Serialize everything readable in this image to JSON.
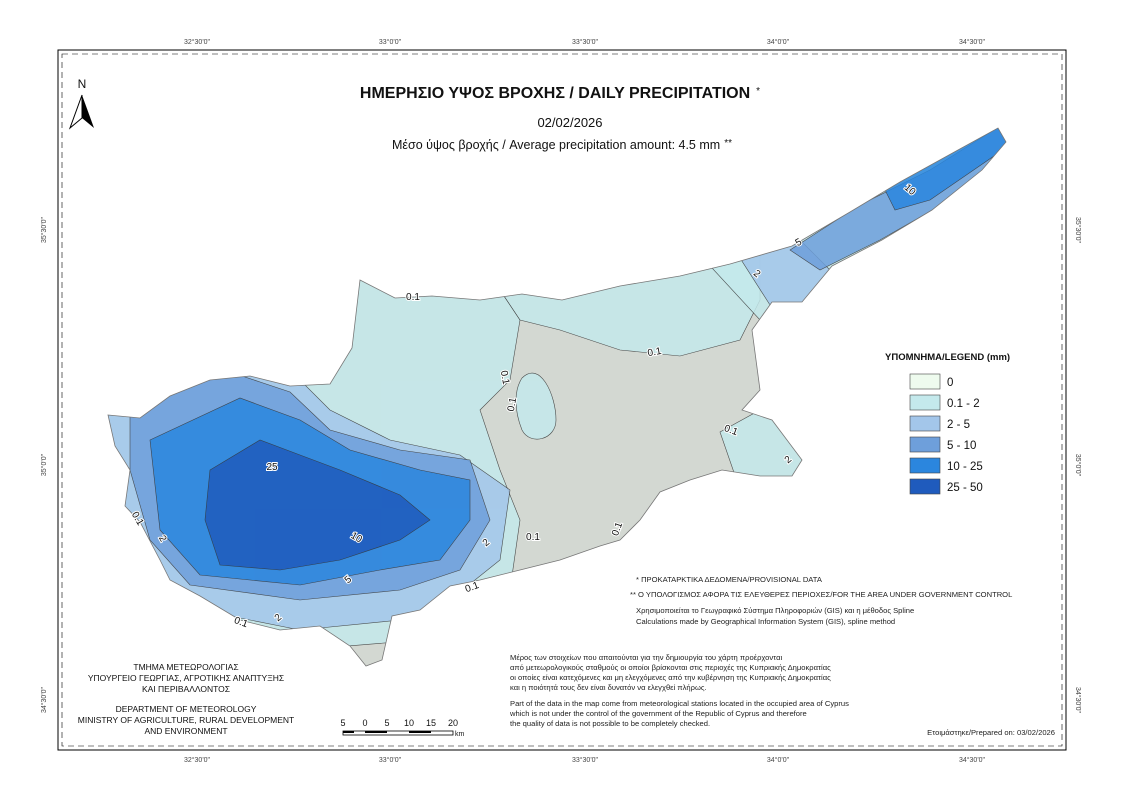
{
  "map": {
    "title": "ΗΜΕΡΗΣΙΟ ΥΨΟΣ ΒΡΟΧΗΣ / DAILY PRECIPITATION",
    "title_mark": "*",
    "date": "02/02/2026",
    "average": "Μέσο ύψος βροχής / Average precipitation amount: 4.5 mm",
    "average_mark": "**",
    "north": "N",
    "graticule": {
      "top": [
        "32°30'0\"",
        "33°0'0\"",
        "33°30'0\"",
        "34°0'0\"",
        "34°30'0\""
      ],
      "bottom": [
        "32°30'0\"",
        "33°0'0\"",
        "33°30'0\"",
        "34°0'0\"",
        "34°30'0\""
      ],
      "left": [
        "35°30'0\"",
        "35°0'0\"",
        "34°30'0\""
      ],
      "right": [
        "35°30'0\"",
        "35°0'0\"",
        "34°30'0\""
      ]
    },
    "legend": {
      "title": "ΥΠΟΜΝΗΜΑ/LEGEND (mm)",
      "items": [
        {
          "label": "0",
          "color": "#eefbee"
        },
        {
          "label": "0.1 - 2",
          "color": "#c4e9ec"
        },
        {
          "label": "2 - 5",
          "color": "#a3c6ea"
        },
        {
          "label": "5 - 10",
          "color": "#6e9fdb"
        },
        {
          "label": "10 - 25",
          "color": "#2b86de"
        },
        {
          "label": "25 - 50",
          "color": "#1f5bbd"
        }
      ]
    },
    "contour_labels": [
      "0.1",
      "0.1",
      "0.1",
      "0.1",
      "0.1",
      "0.1",
      "0.1",
      "0.1",
      "0.1",
      "2",
      "2",
      "2",
      "2",
      "5",
      "5",
      "10",
      "10",
      "25",
      "0.1",
      "2"
    ]
  },
  "notes": {
    "provisional": "* ΠΡΟΚΑΤΑΡΚΤΙΚΑ ΔΕΔΟΜΕΝΑ/PROVISIONAL DATA",
    "area": "** Ο ΥΠΟΛΟΓΙΣΜΟΣ ΑΦΟΡΑ ΤΙΣ ΕΛΕΥΘΕΡΕΣ ΠΕΡΙΟΧΕΣ/FOR THE AREA UNDER GOVERNMENT CONTROL",
    "gis_greek": "Χρησιμοποιείται το Γεωγραφικό Σύστημα Πληροφοριών (GIS) και η μέθοδος Spline",
    "gis_english": "Calculations made by Geographical Information System (GIS), spline method",
    "greek_paragraph": [
      "Μέρος των στοιχείων που απαιτούνται για την δημιουργία του χάρτη προέρχονται",
      "από μετεωρολογικούς σταθμούς οι οποίοι βρίσκονται στις περιοχές της Κυπριακής Δημοκρατίας",
      "οι οποίες είναι κατεχόμενες και μη ελεγχόμενες από την κυβέρνηση της Κυπριακής Δημοκρατίας",
      "και η ποιότητά τους δεν είναι δυνατόν να ελεγχθεί πλήρως."
    ],
    "english_paragraph": [
      "Part of the data in the map come from meteorological stations located in the occupied area of Cyprus",
      "which is not under the control of the government of the Republic of Cyprus and therefore",
      "the quality of data is not possible to be completely checked."
    ],
    "prepared": "Ετοιμάστηκε/Prepared on: 03/02/2026"
  },
  "department": {
    "greek": [
      "ΤΜΗΜΑ ΜΕΤΕΩΡΟΛΟΓΙΑΣ",
      "ΥΠΟΥΡΓΕΙΟ ΓΕΩΡΓΙΑΣ, ΑΓΡΟΤΙΚΗΣ ΑΝΑΠΤΥΞΗΣ",
      "ΚΑΙ ΠΕΡΙΒΑΛΛΟΝΤΟΣ"
    ],
    "english": [
      "DEPARTMENT OF METEOROLOGY",
      "MINISTRY OF AGRICULTURE, RURAL DEVELOPMENT",
      "AND ENVIRONMENT"
    ]
  },
  "scale": {
    "labels": [
      "5",
      "0",
      "5",
      "10",
      "15",
      "20"
    ],
    "unit": "km"
  }
}
